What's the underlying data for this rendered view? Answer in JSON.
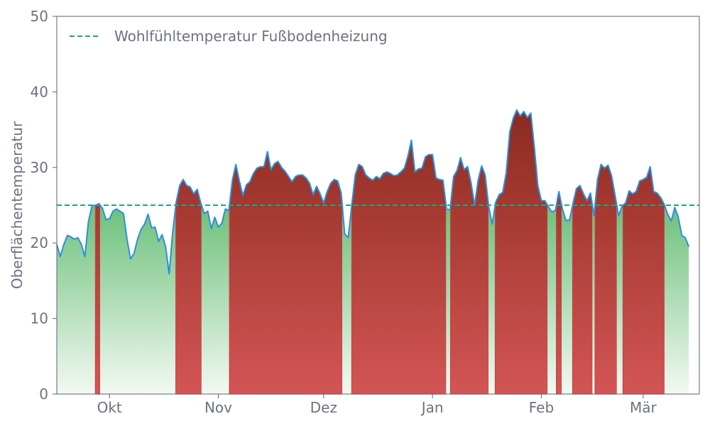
{
  "chart_data": {
    "type": "area",
    "title": "",
    "xlabel": "",
    "ylabel": "Oberflächentemperatur",
    "ylim": [
      0,
      50
    ],
    "yticks": [
      0,
      10,
      20,
      30,
      40,
      50
    ],
    "x_start": "2023-09-16",
    "x_end": "2024-03-17",
    "xticks": [
      {
        "date": "2023-10-01",
        "label": "Okt"
      },
      {
        "date": "2023-11-01",
        "label": "Nov"
      },
      {
        "date": "2023-12-01",
        "label": "Dez"
      },
      {
        "date": "2024-01-01",
        "label": "Jan"
      },
      {
        "date": "2024-02-01",
        "label": "Feb"
      },
      {
        "date": "2024-03-01",
        "label": "Mär"
      }
    ],
    "grid": false,
    "legend": {
      "placement": "top-left",
      "label": "Wohlfühltemperatur Fußbodenheizung"
    },
    "threshold": 25,
    "colors": {
      "line": "#2b8fe0",
      "threshold": "#1aaa7a",
      "above_top": "#8b2a1e",
      "above_bottom": "#d35555",
      "below_top": "#6cc07a",
      "below_bottom": "#f2f9f2",
      "above_edge": "#d04040",
      "axis": "#5b6275"
    },
    "series": [
      {
        "start": "2023-09-16",
        "values": [
          19.8,
          18.2,
          19.8,
          21.0,
          20.8,
          20.5,
          20.7,
          19.8,
          18.2,
          22.8,
          24.9,
          25.0,
          25.2,
          24.6,
          23.1,
          23.2,
          24.2,
          24.5,
          24.2,
          23.9,
          20.5,
          17.9,
          18.6,
          20.5,
          21.8,
          22.5,
          23.8,
          22.0,
          22.1,
          20.2,
          21.1,
          19.5,
          15.9,
          21.4,
          25.4,
          27.6,
          28.4,
          27.6,
          27.4,
          26.5,
          27.1,
          25.3,
          23.9,
          24.2,
          21.9,
          23.4,
          22.1,
          22.6,
          24.5,
          24.3,
          28.3,
          30.4,
          28.2,
          26.3,
          27.7,
          28.1,
          29.2,
          29.9,
          30.1,
          30.1,
          32.1,
          29.7,
          30.5,
          30.8,
          30.0,
          29.5,
          28.8,
          28.1,
          28.8,
          29.0,
          29.0,
          28.6,
          27.9,
          26.4,
          27.5,
          26.5,
          25.3,
          26.8,
          27.9,
          28.4,
          28.2,
          26.6,
          21.2,
          20.7,
          25.0,
          29.0,
          30.4,
          30.1,
          29.0,
          28.6,
          28.3,
          28.8,
          28.5,
          29.2,
          29.4,
          29.2,
          28.9,
          29.0,
          29.4,
          29.9,
          31.5,
          33.6,
          29.4,
          29.8,
          29.9,
          31.4,
          31.7,
          31.7,
          28.6,
          28.4,
          28.3,
          24.5,
          24.4,
          28.8,
          29.6,
          31.3,
          29.7,
          30.1,
          27.9,
          25.0,
          28.3,
          30.2,
          29.0,
          24.8,
          22.5,
          25.4,
          26.4,
          26.7,
          29.3,
          34.7,
          36.5,
          37.6,
          36.8,
          37.4,
          36.6,
          37.2,
          32.7,
          27.6,
          25.6,
          25.6,
          24.8,
          24.1,
          24.3,
          26.8,
          24.5,
          23.0,
          23.0,
          25.2,
          27.2,
          27.6,
          26.5,
          25.6,
          26.6,
          23.6,
          28.4,
          30.4,
          29.9,
          30.3,
          28.9,
          26.3,
          23.6,
          24.9,
          25.3,
          26.9,
          26.5,
          26.8,
          28.2,
          28.4,
          28.7,
          30.1,
          26.8,
          26.6,
          26.0,
          25.1,
          23.8,
          22.9,
          24.7,
          23.4,
          21.0,
          20.7,
          19.5
        ]
      }
    ]
  }
}
